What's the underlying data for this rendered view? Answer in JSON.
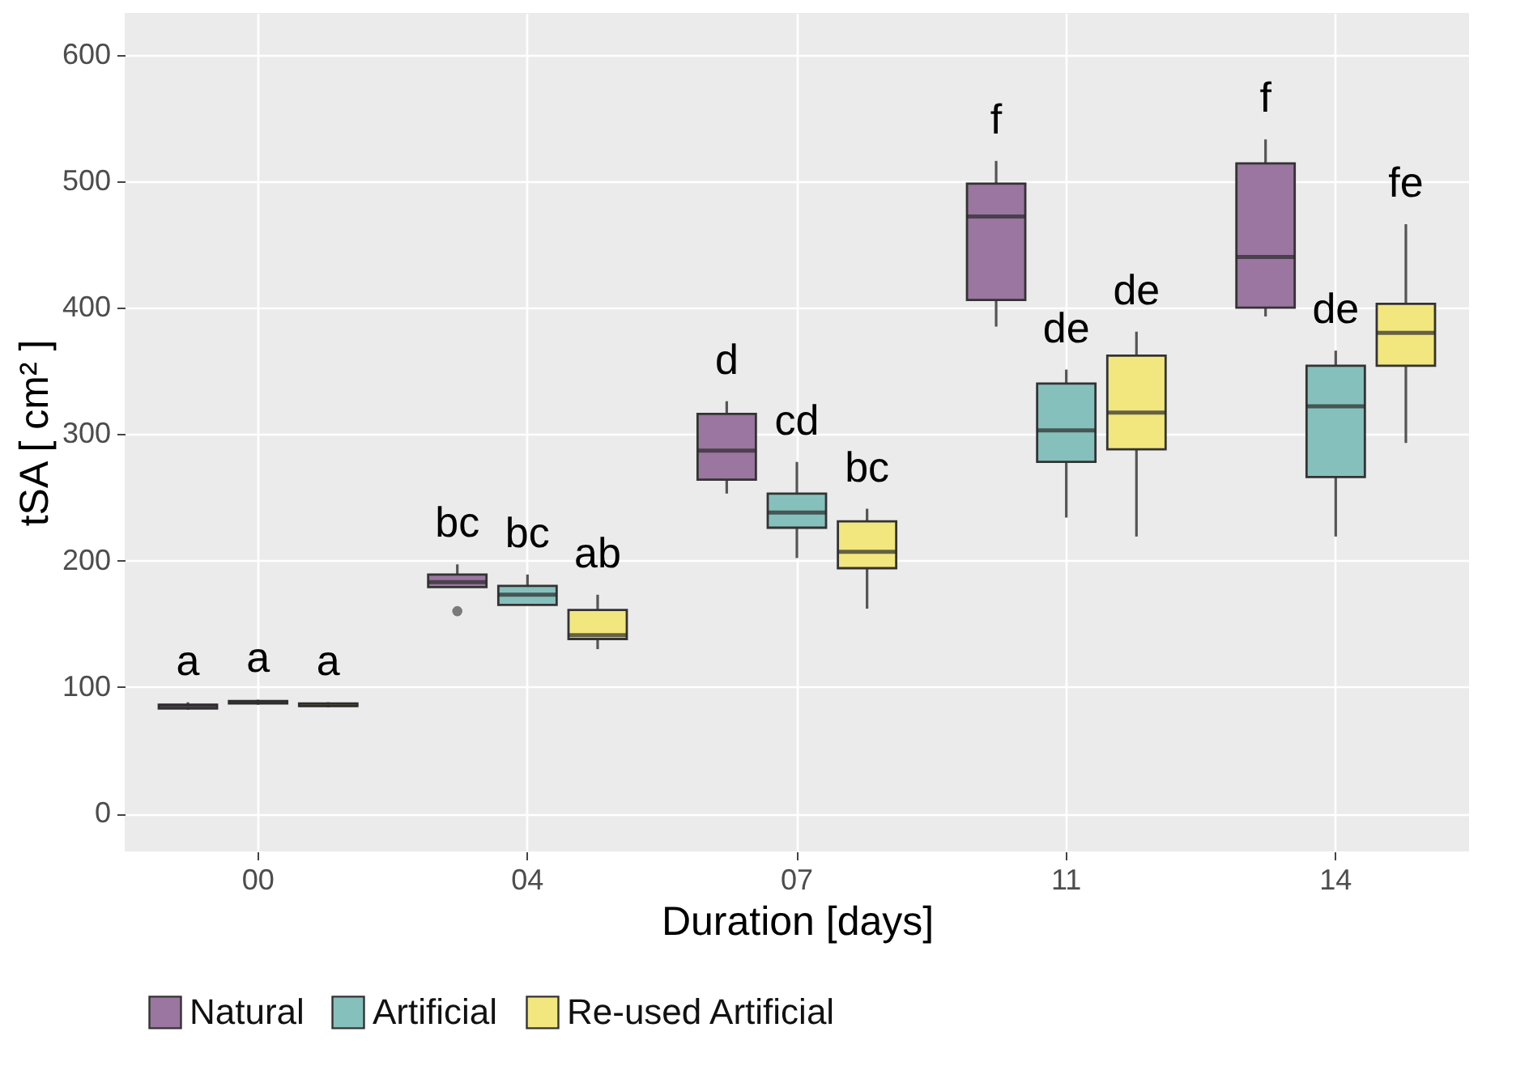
{
  "chart_data": {
    "type": "box",
    "xlabel": "Duration [days]",
    "ylabel": "tSA [ cm² ]",
    "categories": [
      "00",
      "04",
      "07",
      "11",
      "14"
    ],
    "ylim": [
      -30,
      633
    ],
    "yticks": [
      0,
      100,
      200,
      300,
      400,
      500,
      600
    ],
    "grid": true,
    "legend": "bottom",
    "series": [
      {
        "name": "Natural",
        "color": "#9a76a0",
        "boxes": [
          {
            "low": 82,
            "q1": 83,
            "median": 85,
            "q3": 86,
            "high": 88
          },
          {
            "low": 179,
            "q1": 179,
            "median": 183,
            "q3": 189,
            "high": 197,
            "outliers": [
              160
            ]
          },
          {
            "low": 253,
            "q1": 264,
            "median": 287,
            "q3": 316,
            "high": 326
          },
          {
            "low": 385,
            "q1": 406,
            "median": 472,
            "q3": 498,
            "high": 516
          },
          {
            "low": 393,
            "q1": 400,
            "median": 440,
            "q3": 514,
            "high": 533
          }
        ]
      },
      {
        "name": "Artificial",
        "color": "#86c0bc",
        "boxes": [
          {
            "low": 86,
            "q1": 87,
            "median": 88,
            "q3": 89,
            "high": 90
          },
          {
            "low": 165,
            "q1": 165,
            "median": 173,
            "q3": 180,
            "high": 189
          },
          {
            "low": 202,
            "q1": 226,
            "median": 238,
            "q3": 253,
            "high": 278
          },
          {
            "low": 234,
            "q1": 278,
            "median": 303,
            "q3": 340,
            "high": 351
          },
          {
            "low": 219,
            "q1": 266,
            "median": 322,
            "q3": 354,
            "high": 366
          }
        ]
      },
      {
        "name": "Re-used Artificial",
        "color": "#f2e67e",
        "boxes": [
          {
            "low": 84,
            "q1": 85,
            "median": 86,
            "q3": 87,
            "high": 88
          },
          {
            "low": 130,
            "q1": 138,
            "median": 141,
            "q3": 161,
            "high": 173
          },
          {
            "low": 162,
            "q1": 194,
            "median": 207,
            "q3": 231,
            "high": 241
          },
          {
            "low": 219,
            "q1": 288,
            "median": 317,
            "q3": 362,
            "high": 381
          },
          {
            "low": 293,
            "q1": 354,
            "median": 380,
            "q3": 403,
            "high": 466
          }
        ]
      }
    ],
    "annotations": [
      "a",
      "a",
      "a",
      "bc",
      "bc",
      "ab",
      "d",
      "cd",
      "bc",
      "f",
      "de",
      "de",
      "f",
      "de",
      "fe"
    ]
  }
}
